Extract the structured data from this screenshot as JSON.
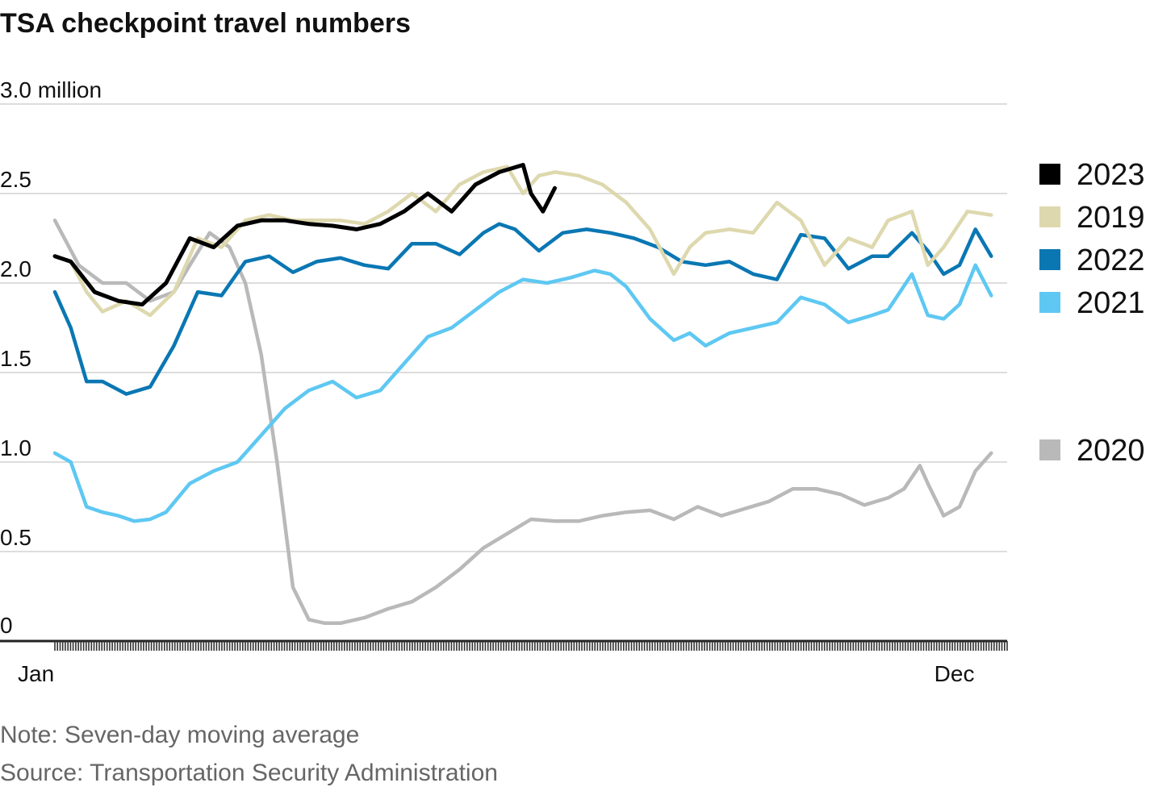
{
  "chart_data": {
    "type": "line",
    "title": "TSA checkpoint travel numbers",
    "y_unit_label": "3.0 million",
    "ylim": [
      0,
      3.0
    ],
    "y_ticks": [
      {
        "value": 0,
        "label": "0"
      },
      {
        "value": 0.5,
        "label": "0.5"
      },
      {
        "value": 1.0,
        "label": "1.0"
      },
      {
        "value": 1.5,
        "label": "1.5"
      },
      {
        "value": 2.0,
        "label": "2.0"
      },
      {
        "value": 2.5,
        "label": "2.5"
      },
      {
        "value": 3.0,
        "label": "3.0 million"
      }
    ],
    "x_ticks": [
      {
        "value": 0,
        "label": "Jan"
      },
      {
        "value": 11,
        "label": "Dec"
      }
    ],
    "xlim": [
      0,
      12
    ],
    "x_unit": "month",
    "grid": true,
    "legend_position": "right",
    "series": [
      {
        "name": "2023",
        "color": "#000000",
        "x": [
          0,
          0.2,
          0.5,
          0.8,
          1.1,
          1.4,
          1.7,
          2.0,
          2.3,
          2.6,
          2.9,
          3.2,
          3.5,
          3.8,
          4.1,
          4.4,
          4.7,
          5.0,
          5.3,
          5.6,
          5.9,
          6.0,
          6.15,
          6.3
        ],
        "y": [
          2.15,
          2.12,
          1.95,
          1.9,
          1.88,
          2.0,
          2.25,
          2.2,
          2.32,
          2.35,
          2.35,
          2.33,
          2.32,
          2.3,
          2.33,
          2.4,
          2.5,
          2.4,
          2.55,
          2.62,
          2.66,
          2.5,
          2.4,
          2.53
        ]
      },
      {
        "name": "2019",
        "color": "#ded8ae",
        "x": [
          0,
          0.2,
          0.4,
          0.6,
          0.9,
          1.2,
          1.5,
          1.8,
          2.1,
          2.4,
          2.7,
          3.0,
          3.3,
          3.6,
          3.9,
          4.2,
          4.5,
          4.8,
          5.1,
          5.4,
          5.7,
          5.9,
          6.1,
          6.3,
          6.6,
          6.9,
          7.2,
          7.5,
          7.8,
          8.0,
          8.2,
          8.5,
          8.8,
          9.1,
          9.4,
          9.7,
          10.0,
          10.3,
          10.5,
          10.8,
          11.0,
          11.2,
          11.5,
          11.8
        ],
        "y": [
          2.15,
          2.12,
          1.95,
          1.84,
          1.9,
          1.82,
          1.95,
          2.25,
          2.2,
          2.35,
          2.38,
          2.35,
          2.35,
          2.35,
          2.33,
          2.4,
          2.5,
          2.4,
          2.55,
          2.62,
          2.65,
          2.5,
          2.6,
          2.62,
          2.6,
          2.55,
          2.45,
          2.3,
          2.05,
          2.2,
          2.28,
          2.3,
          2.28,
          2.45,
          2.35,
          2.1,
          2.25,
          2.2,
          2.35,
          2.4,
          2.1,
          2.2,
          2.4,
          2.38
        ]
      },
      {
        "name": "2022",
        "color": "#0a77b3",
        "x": [
          0,
          0.2,
          0.4,
          0.6,
          0.9,
          1.2,
          1.5,
          1.8,
          2.1,
          2.4,
          2.7,
          3.0,
          3.3,
          3.6,
          3.9,
          4.2,
          4.5,
          4.8,
          5.1,
          5.4,
          5.6,
          5.8,
          6.1,
          6.4,
          6.7,
          7.0,
          7.3,
          7.6,
          7.9,
          8.2,
          8.5,
          8.8,
          9.1,
          9.4,
          9.7,
          10.0,
          10.3,
          10.5,
          10.8,
          11.0,
          11.2,
          11.4,
          11.6,
          11.8
        ],
        "y": [
          1.95,
          1.75,
          1.45,
          1.45,
          1.38,
          1.42,
          1.65,
          1.95,
          1.93,
          2.12,
          2.15,
          2.06,
          2.12,
          2.14,
          2.1,
          2.08,
          2.22,
          2.22,
          2.16,
          2.28,
          2.33,
          2.3,
          2.18,
          2.28,
          2.3,
          2.28,
          2.25,
          2.2,
          2.12,
          2.1,
          2.12,
          2.05,
          2.02,
          2.27,
          2.25,
          2.08,
          2.15,
          2.15,
          2.28,
          2.18,
          2.05,
          2.1,
          2.3,
          2.15
        ]
      },
      {
        "name": "2021",
        "color": "#5ec8f2",
        "x": [
          0,
          0.2,
          0.4,
          0.6,
          0.8,
          1.0,
          1.2,
          1.4,
          1.7,
          2.0,
          2.3,
          2.6,
          2.9,
          3.2,
          3.5,
          3.8,
          4.1,
          4.4,
          4.7,
          5.0,
          5.3,
          5.6,
          5.9,
          6.2,
          6.5,
          6.8,
          7.0,
          7.2,
          7.5,
          7.8,
          8.0,
          8.2,
          8.5,
          8.8,
          9.1,
          9.4,
          9.7,
          10.0,
          10.3,
          10.5,
          10.8,
          11.0,
          11.2,
          11.4,
          11.6,
          11.8
        ],
        "y": [
          1.05,
          1.0,
          0.75,
          0.72,
          0.7,
          0.67,
          0.68,
          0.72,
          0.88,
          0.95,
          1.0,
          1.15,
          1.3,
          1.4,
          1.45,
          1.36,
          1.4,
          1.55,
          1.7,
          1.75,
          1.85,
          1.95,
          2.02,
          2.0,
          2.03,
          2.07,
          2.05,
          1.98,
          1.8,
          1.68,
          1.72,
          1.65,
          1.72,
          1.75,
          1.78,
          1.92,
          1.88,
          1.78,
          1.82,
          1.85,
          2.05,
          1.82,
          1.8,
          1.88,
          2.1,
          1.93
        ]
      },
      {
        "name": "2020",
        "color": "#b9b9b9",
        "x": [
          0,
          0.3,
          0.6,
          0.9,
          1.2,
          1.5,
          1.7,
          1.95,
          2.2,
          2.4,
          2.6,
          2.8,
          3.0,
          3.2,
          3.4,
          3.6,
          3.9,
          4.2,
          4.5,
          4.8,
          5.1,
          5.4,
          5.7,
          6.0,
          6.3,
          6.6,
          6.9,
          7.2,
          7.5,
          7.8,
          8.1,
          8.4,
          8.7,
          9.0,
          9.3,
          9.6,
          9.9,
          10.2,
          10.5,
          10.7,
          10.9,
          11.0,
          11.2,
          11.4,
          11.6,
          11.8
        ],
        "y": [
          2.35,
          2.1,
          2.0,
          2.0,
          1.9,
          1.95,
          2.1,
          2.28,
          2.2,
          2.0,
          1.6,
          1.0,
          0.3,
          0.12,
          0.1,
          0.1,
          0.13,
          0.18,
          0.22,
          0.3,
          0.4,
          0.52,
          0.6,
          0.68,
          0.67,
          0.67,
          0.7,
          0.72,
          0.73,
          0.68,
          0.75,
          0.7,
          0.74,
          0.78,
          0.85,
          0.85,
          0.82,
          0.76,
          0.8,
          0.85,
          0.98,
          0.88,
          0.7,
          0.75,
          0.95,
          1.05
        ]
      }
    ],
    "legend": [
      {
        "label": "2023",
        "color": "#000000"
      },
      {
        "label": "2019",
        "color": "#ded8ae"
      },
      {
        "label": "2022",
        "color": "#0a77b3"
      },
      {
        "label": "2021",
        "color": "#5ec8f2"
      },
      {
        "label": "2020",
        "color": "#b9b9b9"
      }
    ],
    "note": "Note: Seven-day moving average",
    "source": "Source: Transportation Security Administration"
  }
}
